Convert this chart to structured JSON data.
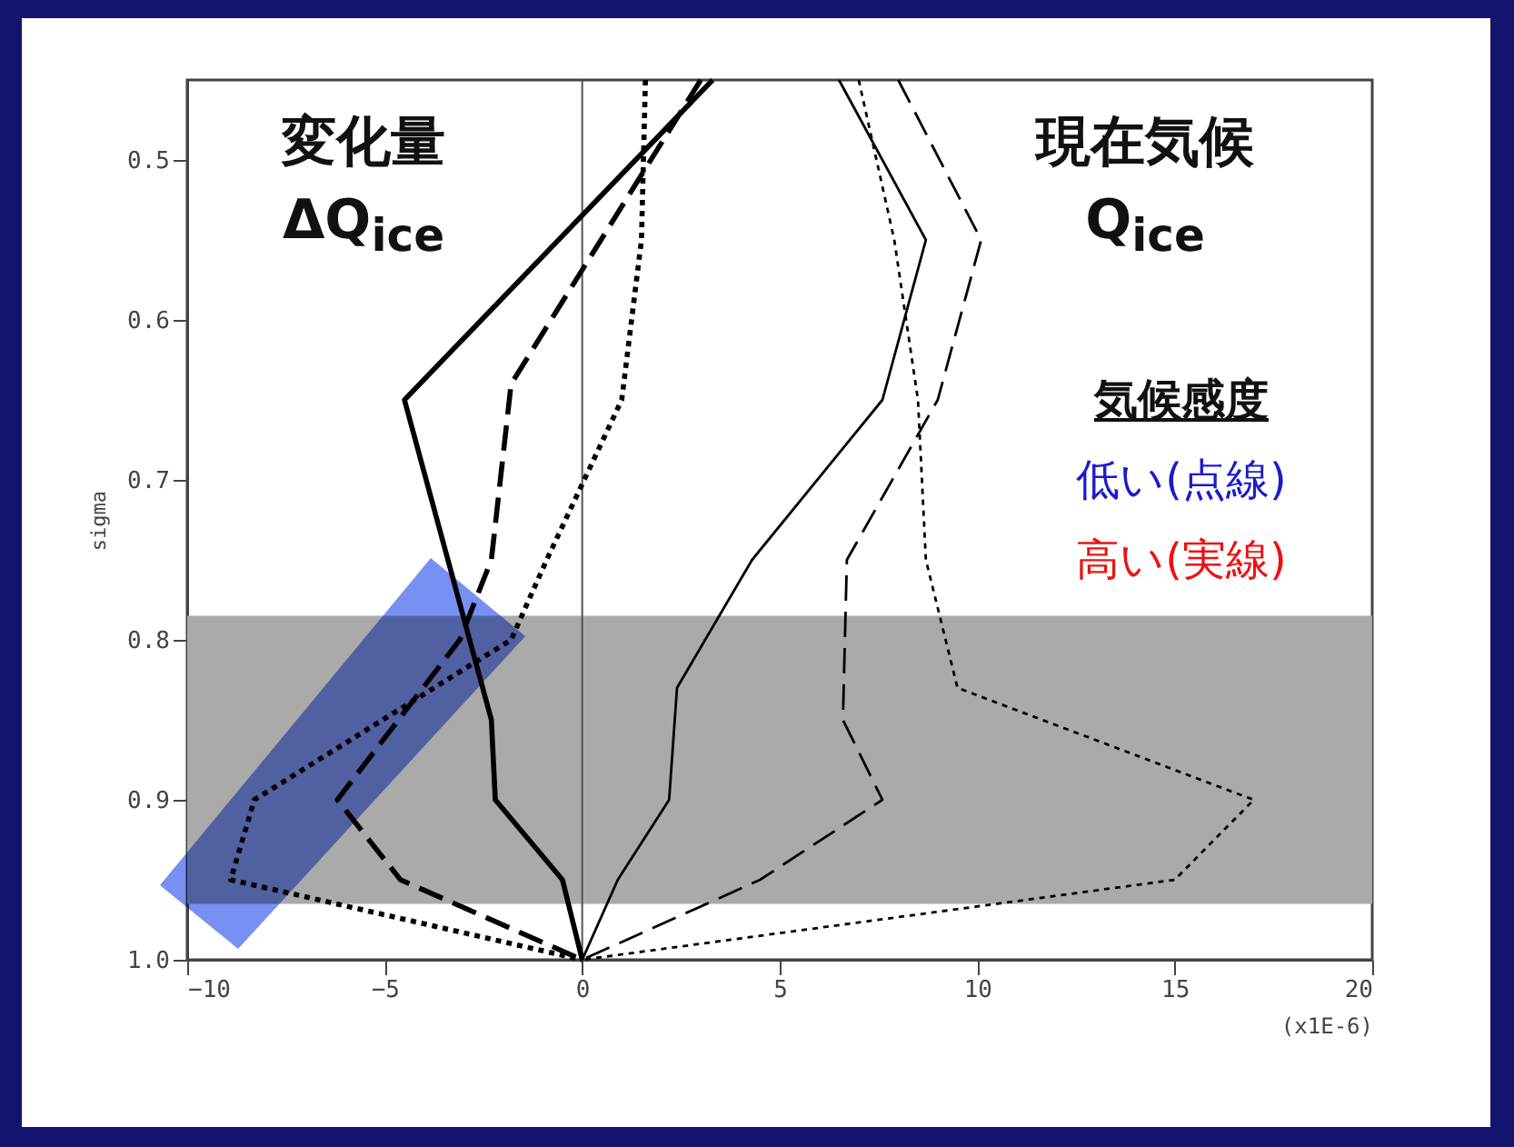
{
  "chart_data": {
    "type": "line",
    "xlabel": "(x1E-6)",
    "ylabel": "sigma",
    "xlim": [
      -10,
      20
    ],
    "xticks": [
      -10,
      -5,
      0,
      5,
      10,
      15,
      20
    ],
    "ylim": [
      1.0,
      0.45
    ],
    "yticks": [
      0.5,
      0.6,
      0.7,
      0.8,
      0.9,
      {
        "value": 1.0,
        "label": "1.0"
      }
    ],
    "grid": false,
    "marker": "none",
    "series": [
      {
        "color": "#000000",
        "line_style": "solid",
        "x": [
          3.3,
          -4.5,
          -2.3,
          -2.2,
          -0.5,
          0
        ],
        "values": [
          0.45,
          0.65,
          0.85,
          0.9,
          0.95,
          1.0
        ]
      },
      {
        "color": "#000000",
        "line_style": "dashed",
        "x": [
          3.0,
          -1.8,
          -2.3,
          -3.1,
          -6.2,
          -4.6,
          0
        ],
        "values": [
          0.45,
          0.64,
          0.75,
          0.8,
          0.9,
          0.95,
          1.0
        ]
      },
      {
        "color": "#000000",
        "line_style": "dotted",
        "x": [
          1.6,
          1.5,
          1.0,
          -0.9,
          -1.8,
          -8.3,
          -8.9,
          0
        ],
        "values": [
          0.45,
          0.55,
          0.65,
          0.75,
          0.8,
          0.9,
          0.95,
          1.0
        ]
      },
      {
        "color": "#000000",
        "line_style": "solid",
        "x": [
          6.5,
          8.7,
          7.6,
          4.3,
          2.4,
          2.2,
          0.9,
          0
        ],
        "values": [
          0.45,
          0.55,
          0.65,
          0.75,
          0.83,
          0.9,
          0.95,
          1.0
        ]
      },
      {
        "color": "#000000",
        "line_style": "dashed",
        "x": [
          8.0,
          10.1,
          9.0,
          6.7,
          6.6,
          7.6,
          4.5,
          0
        ],
        "values": [
          0.45,
          0.55,
          0.65,
          0.75,
          0.85,
          0.9,
          0.95,
          1.0
        ]
      },
      {
        "color": "#000000",
        "line_style": "dotted",
        "x": [
          7.0,
          7.9,
          8.5,
          8.7,
          9.5,
          17.0,
          15.0,
          0
        ],
        "values": [
          0.45,
          0.55,
          0.65,
          0.75,
          0.83,
          0.9,
          0.95,
          1.0
        ]
      }
    ],
    "ref_lines": [
      {
        "axis": "x",
        "value": 0,
        "color": "#555555"
      }
    ],
    "bands": [
      {
        "axis": "y",
        "from": 0.785,
        "to": 0.965,
        "color": "#aaaaaa"
      }
    ],
    "annotations": [
      "変化量",
      "ΔQ$_{ice}$",
      "現在気候",
      "Q$_{ice}$",
      "気候感度",
      "低い(点線)",
      "高い(実線)"
    ]
  }
}
